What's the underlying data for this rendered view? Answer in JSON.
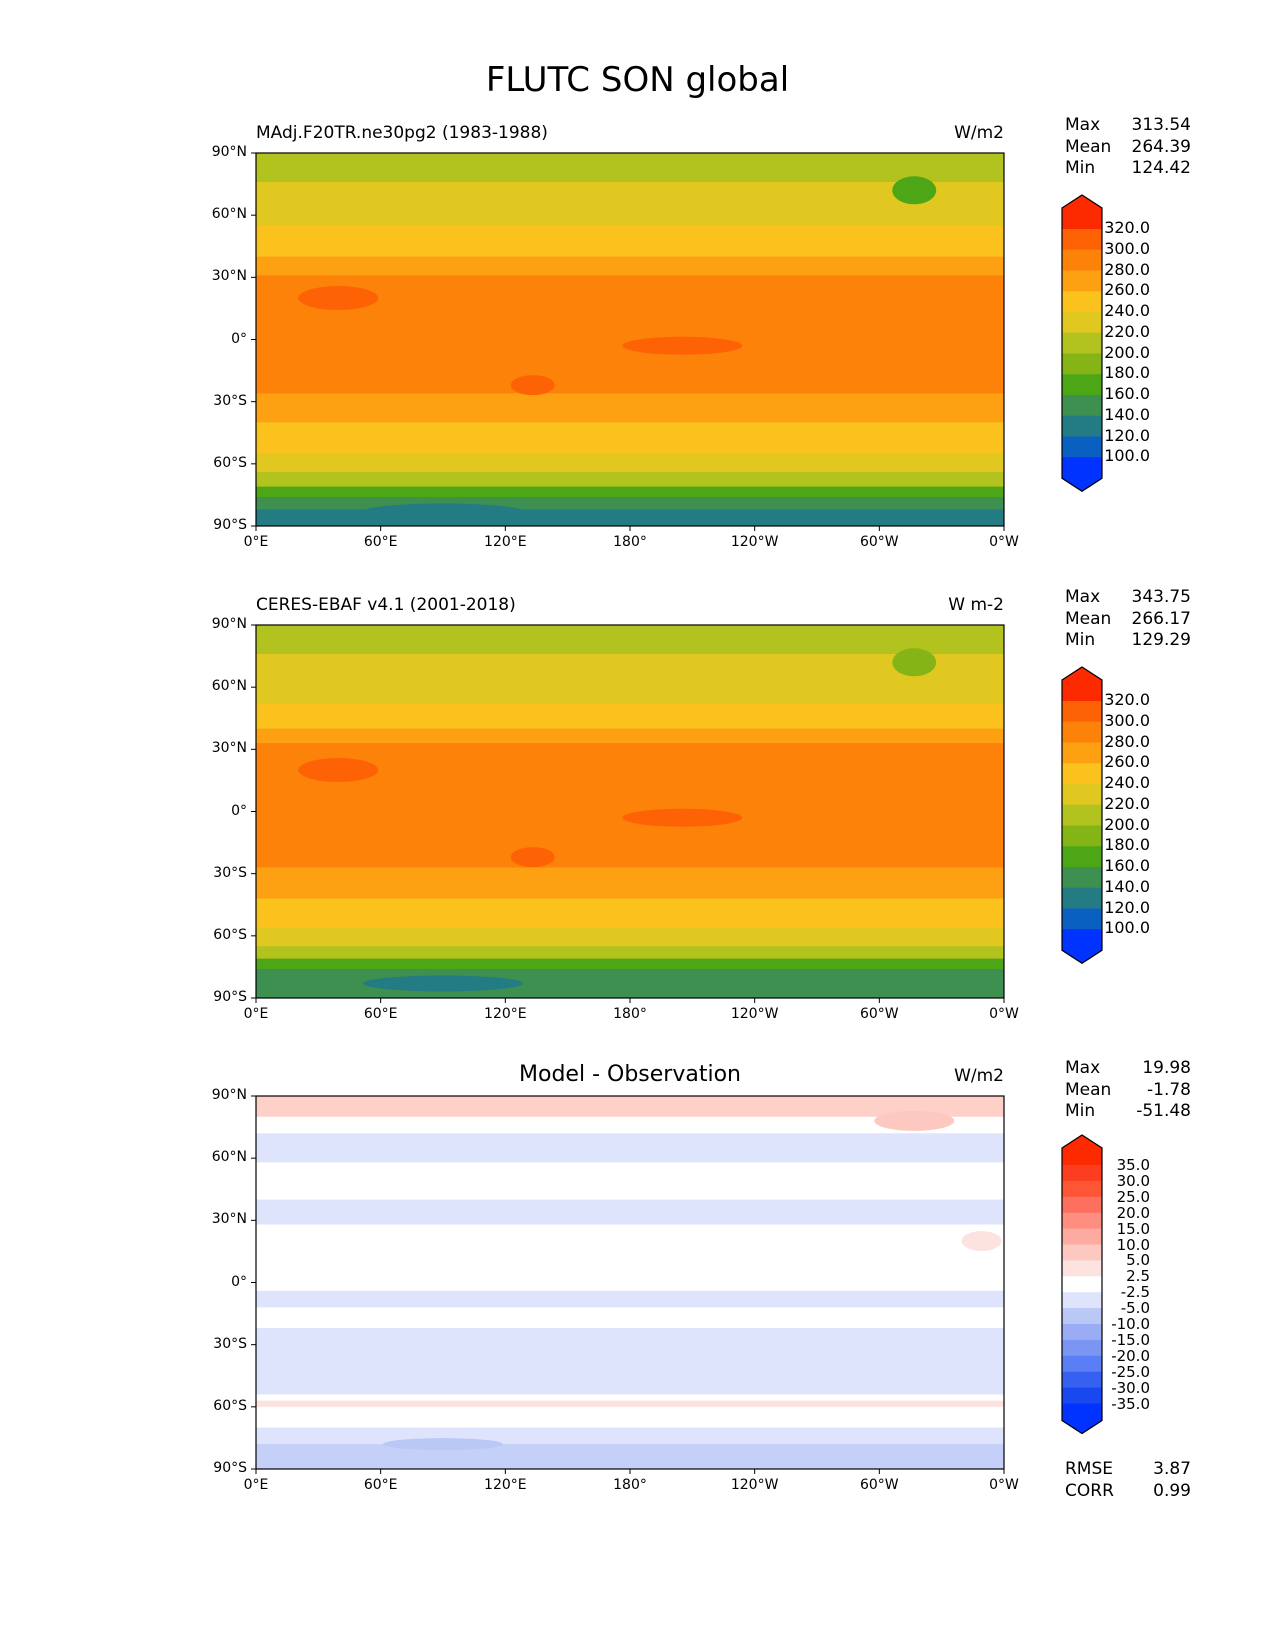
{
  "figure_title": "FLUTC SON global",
  "chart_data": [
    {
      "type": "heatmap",
      "title_left": "MAdj.F20TR.ne30pg2 (1983-1988)",
      "units": "W/m2",
      "stats": {
        "labels": [
          "Max",
          "Mean",
          "Min"
        ],
        "values": [
          "313.54",
          "264.39",
          "124.42"
        ]
      },
      "levels": [
        "320.0",
        "300.0",
        "280.0",
        "260.0",
        "240.0",
        "220.0",
        "200.0",
        "180.0",
        "160.0",
        "140.0",
        "120.0",
        "100.0"
      ],
      "colors": [
        "#0033ff",
        "#0a60c0",
        "#237b84",
        "#3d9050",
        "#4ca616",
        "#84b416",
        "#b2c21e",
        "#e0c820",
        "#fbc21d",
        "#fda011",
        "#fd820a",
        "#fd6205",
        "#fd2a00"
      ],
      "bands": [
        [
          90,
          "#b2c21e"
        ],
        [
          76,
          "#e0c820"
        ],
        [
          55,
          "#fbc21d"
        ],
        [
          40,
          "#fda011"
        ],
        [
          31,
          "#fd820a"
        ],
        [
          -26,
          "#fda011"
        ],
        [
          -40,
          "#fbc21d"
        ],
        [
          -55,
          "#e0c820"
        ],
        [
          -64,
          "#b2c21e"
        ],
        [
          -71,
          "#4ca616"
        ],
        [
          -76,
          "#3d9050"
        ],
        [
          -82,
          "#237b84"
        ]
      ],
      "xticks": [
        "0°E",
        "60°E",
        "120°E",
        "180°",
        "120°W",
        "60°W",
        "0°W"
      ],
      "yticks": [
        "90°N",
        "60°N",
        "30°N",
        "0°",
        "30°S",
        "60°S",
        "90°S"
      ]
    },
    {
      "type": "heatmap",
      "title_left": "CERES-EBAF v4.1 (2001-2018)",
      "units": "W m-2",
      "stats": {
        "labels": [
          "Max",
          "Mean",
          "Min"
        ],
        "values": [
          "343.75",
          "266.17",
          "129.29"
        ]
      },
      "levels": [
        "320.0",
        "300.0",
        "280.0",
        "260.0",
        "240.0",
        "220.0",
        "200.0",
        "180.0",
        "160.0",
        "140.0",
        "120.0",
        "100.0"
      ],
      "colors": [
        "#0033ff",
        "#0a60c0",
        "#237b84",
        "#3d9050",
        "#4ca616",
        "#84b416",
        "#b2c21e",
        "#e0c820",
        "#fbc21d",
        "#fda011",
        "#fd820a",
        "#fd6205",
        "#fd2a00"
      ],
      "bands": [
        [
          90,
          "#b2c21e"
        ],
        [
          76,
          "#e0c820"
        ],
        [
          52,
          "#fbc21d"
        ],
        [
          40,
          "#fda011"
        ],
        [
          33,
          "#fd820a"
        ],
        [
          -27,
          "#fda011"
        ],
        [
          -42,
          "#fbc21d"
        ],
        [
          -56,
          "#e0c820"
        ],
        [
          -65,
          "#b2c21e"
        ],
        [
          -71,
          "#4ca616"
        ],
        [
          -76,
          "#3d9050"
        ]
      ],
      "xticks": [
        "0°E",
        "60°E",
        "120°E",
        "180°",
        "120°W",
        "60°W",
        "0°W"
      ],
      "yticks": [
        "90°N",
        "60°N",
        "30°N",
        "0°",
        "30°S",
        "60°S",
        "90°S"
      ]
    },
    {
      "type": "heatmap",
      "title_center": "Model - Observation",
      "units": "W/m2",
      "stats": {
        "labels": [
          "Max",
          "Mean",
          "Min"
        ],
        "values": [
          "19.98",
          "-1.78",
          "-51.48"
        ]
      },
      "levels": [
        "35.0",
        "30.0",
        "25.0",
        "20.0",
        "15.0",
        "10.0",
        "5.0",
        "2.5",
        "-2.5",
        "-5.0",
        "-10.0",
        "-15.0",
        "-20.0",
        "-25.0",
        "-30.0",
        "-35.0"
      ],
      "colors": [
        "#0033ff",
        "#1a48f0",
        "#3560f0",
        "#5a7ef5",
        "#7b95f3",
        "#9aacf3",
        "#bac8f5",
        "#dde4fb",
        "#ffffff",
        "#fde3e0",
        "#fdc8c0",
        "#fdaaa0",
        "#fd8e80",
        "#fd7060",
        "#fd5535",
        "#fd3d20",
        "#fd2a00"
      ],
      "bands": [
        [
          90,
          "#fdd0c8"
        ],
        [
          80,
          "#ffffff"
        ],
        [
          72,
          "#dde4fb"
        ],
        [
          58,
          "#ffffff"
        ],
        [
          40,
          "#dde4fb"
        ],
        [
          28,
          "#ffffff"
        ],
        [
          -4,
          "#dde4fb"
        ],
        [
          -12,
          "#ffffff"
        ],
        [
          -22,
          "#dde4fb"
        ],
        [
          -54,
          "#ffffff"
        ],
        [
          -57,
          "#fde3e0"
        ],
        [
          -60,
          "#ffffff"
        ],
        [
          -70,
          "#dde4fb"
        ],
        [
          -78,
          "#c4d0f7"
        ]
      ],
      "bottom_stats": {
        "labels": [
          "RMSE",
          "CORR"
        ],
        "values": [
          "3.87",
          "0.99"
        ]
      },
      "xticks": [
        "0°E",
        "60°E",
        "120°E",
        "180°",
        "120°W",
        "60°W",
        "0°W"
      ],
      "yticks": [
        "90°N",
        "60°N",
        "30°N",
        "0°",
        "30°S",
        "60°S",
        "90°S"
      ]
    }
  ]
}
